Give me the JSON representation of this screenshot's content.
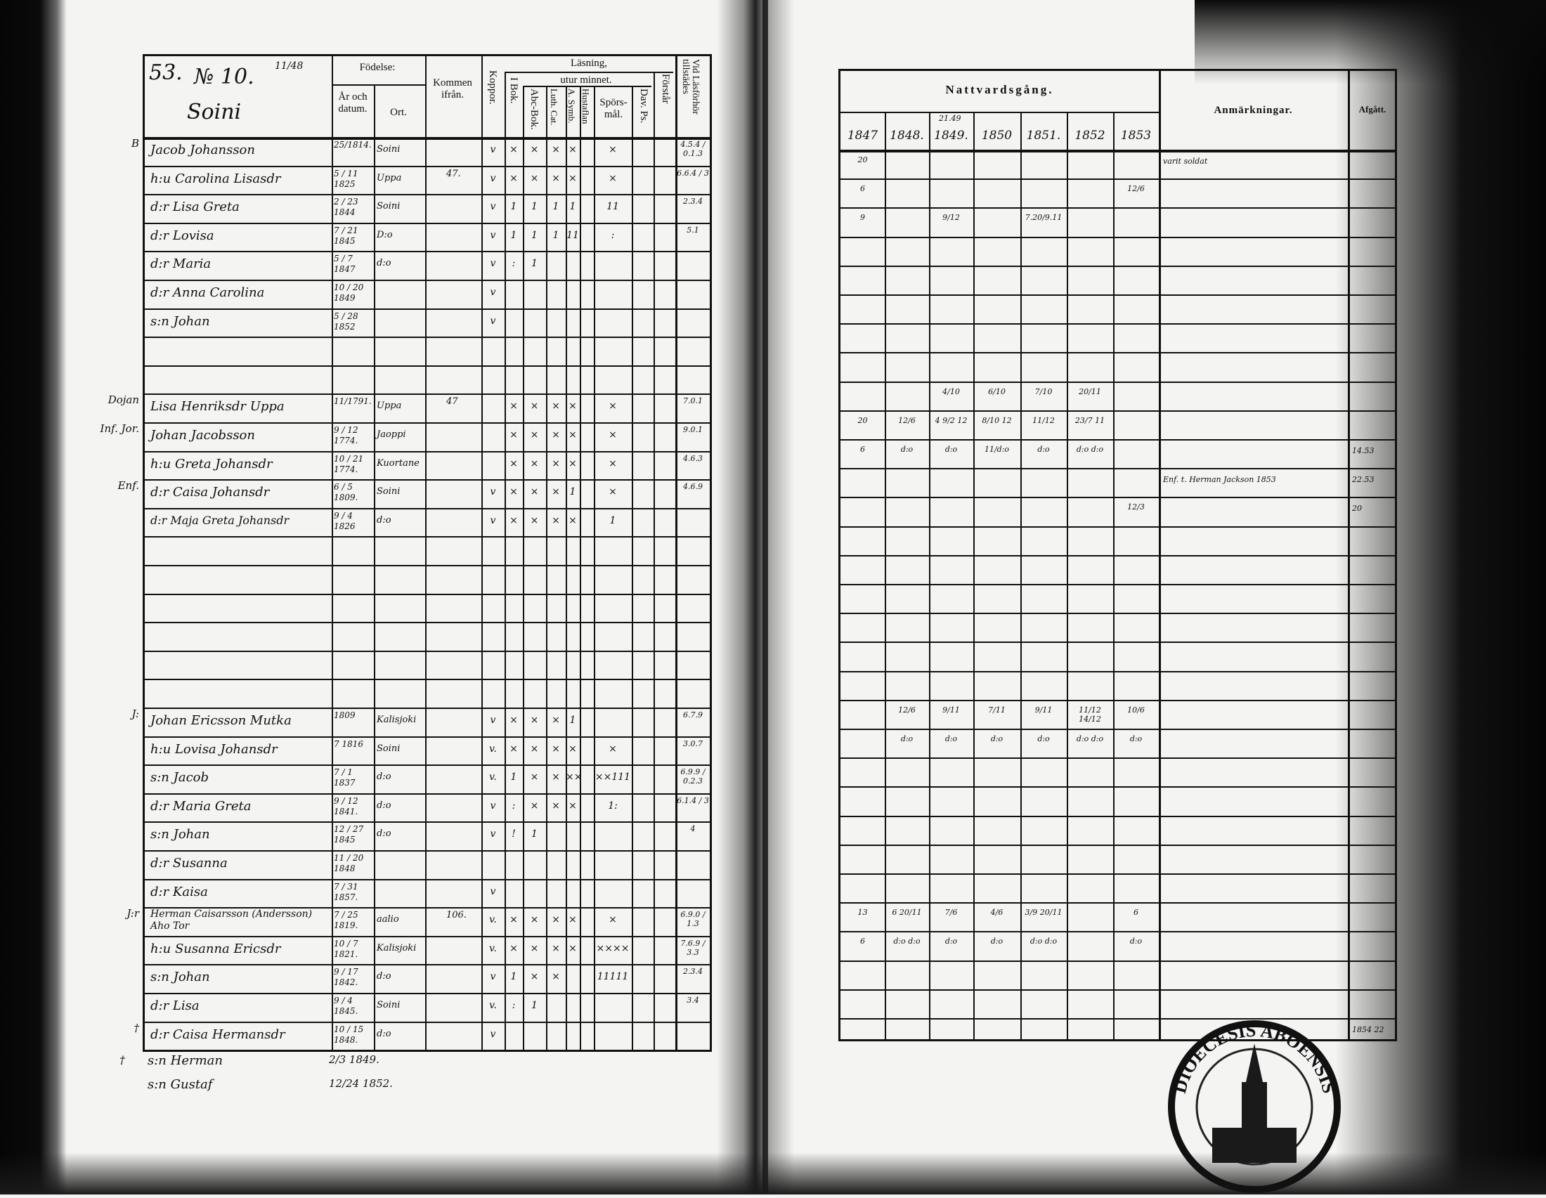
{
  "left_page": {
    "page_number": "53.",
    "household_number": "№ 10.",
    "fraction_note": "11/48",
    "village": "Soini",
    "headers": {
      "fodelse": "Födelse:",
      "ar_och_datum": "År och datum.",
      "ort": "Ort.",
      "kommen_ifran": "Kommen ifrån.",
      "koppor": "Koppor.",
      "lasning": "Läsning,",
      "utur_minnet": "utur minnet.",
      "i_bok": "I Bok.",
      "abc_bok": "Abc-Bok.",
      "luth_cat": "Luth. Cat.",
      "a_symb": "A. Symb.",
      "hustaflan": "Hustaflan",
      "sporsmal": "Spörs-mål.",
      "dav_ps": "Dav. Ps.",
      "forstar": "Förstår",
      "vid_lasforhor": "Vid Läsförhör tillstädes"
    },
    "rows": [
      {
        "row": 0,
        "margin": "B",
        "name": "Jacob Johansson",
        "date": "25/1814.",
        "place": "Soini",
        "from": "",
        "marks": [
          "v",
          "×",
          "×",
          "×",
          "×",
          "",
          "×",
          "",
          "",
          "4.5.4 / 0.1.3"
        ]
      },
      {
        "row": 1,
        "margin": "",
        "name": "h:u Carolina Lisasdr",
        "date": "5 / 11 1825",
        "place": "Uppa",
        "from": "47.",
        "marks": [
          "v",
          "×",
          "×",
          "×",
          "×",
          "",
          "×",
          "",
          "",
          "6.6.4 / 3"
        ]
      },
      {
        "row": 2,
        "margin": "",
        "name": "d:r Lisa Greta",
        "date": "2 / 23 1844",
        "place": "Soini",
        "from": "",
        "marks": [
          "v",
          "1",
          "1",
          "1",
          "1",
          "",
          "11",
          "",
          "",
          "2.3.4"
        ]
      },
      {
        "row": 3,
        "margin": "",
        "name": "d:r Lovisa",
        "date": "7 / 21 1845",
        "place": "D:o",
        "from": "",
        "marks": [
          "v",
          "1",
          "1",
          "1",
          "11",
          "",
          ":",
          "",
          "",
          "5.1"
        ]
      },
      {
        "row": 4,
        "margin": "",
        "name": "d:r Maria",
        "date": "5 / 7 1847",
        "place": "d:o",
        "from": "",
        "marks": [
          "v",
          ":",
          "1",
          "",
          "",
          "",
          "",
          "",
          "",
          ""
        ]
      },
      {
        "row": 5,
        "margin": "",
        "name": "d:r Anna Carolina",
        "date": "10 / 20 1849",
        "place": "",
        "from": "",
        "marks": [
          "v",
          "",
          "",
          "",
          "",
          "",
          "",
          "",
          "",
          ""
        ]
      },
      {
        "row": 6,
        "margin": "",
        "name": "s:n Johan",
        "date": "5 / 28 1852",
        "place": "",
        "from": "",
        "marks": [
          "v",
          "",
          "",
          "",
          "",
          "",
          "",
          "",
          "",
          ""
        ]
      },
      {
        "row": 9,
        "margin": "Dojan",
        "name": "Lisa Henriksdr Uppa",
        "date": "11/1791.",
        "place": "Uppa",
        "from": "47",
        "marks": [
          "",
          "×",
          "×",
          "×",
          "×",
          "",
          "×",
          "",
          "",
          "7.0.1"
        ]
      },
      {
        "row": 10,
        "margin": "Inf. Jor.",
        "name": "Johan Jacobsson",
        "date": "9 / 12 1774.",
        "place": "Jaoppi",
        "from": "",
        "marks": [
          "",
          "×",
          "×",
          "×",
          "×",
          "",
          "×",
          "",
          "",
          "9.0.1"
        ]
      },
      {
        "row": 11,
        "margin": "",
        "name": "h:u Greta Johansdr",
        "date": "10 / 21 1774.",
        "place": "Kuortane",
        "from": "",
        "marks": [
          "",
          "×",
          "×",
          "×",
          "×",
          "",
          "×",
          "",
          "",
          "4.6.3"
        ]
      },
      {
        "row": 12,
        "margin": "Enf.",
        "name": "d:r Caisa Johansdr",
        "date": "6 / 5 1809.",
        "place": "Soini",
        "from": "",
        "marks": [
          "v",
          "×",
          "×",
          "×",
          "1",
          "",
          "×",
          "",
          "",
          "4.6.9"
        ]
      },
      {
        "row": 13,
        "margin": "",
        "name": "d:r Maja Greta Johansdr",
        "date": "9 / 4 1826",
        "place": "d:o",
        "from": "",
        "marks": [
          "v",
          "×",
          "×",
          "×",
          "×",
          "",
          "1",
          "",
          "",
          ""
        ]
      },
      {
        "row": 20,
        "margin": "J:",
        "name": "Johan Ericsson Mutka",
        "date": "1809",
        "place": "Kalisjoki",
        "from": "",
        "marks": [
          "v",
          "×",
          "×",
          "×",
          "1",
          "",
          "",
          "",
          "",
          "6.7.9"
        ]
      },
      {
        "row": 21,
        "margin": "",
        "name": "h:u Lovisa Johansdr",
        "date": "7 1816",
        "place": "Soini",
        "from": "",
        "marks": [
          "v.",
          "×",
          "×",
          "×",
          "×",
          "",
          "×",
          "",
          "",
          "3.0.7"
        ]
      },
      {
        "row": 22,
        "margin": "",
        "name": "s:n Jacob",
        "date": "7 / 1 1837",
        "place": "d:o",
        "from": "",
        "marks": [
          "v.",
          "1",
          "×",
          "×",
          "××",
          "",
          "××111",
          "",
          "",
          "6.9.9 / 0.2.3"
        ]
      },
      {
        "row": 23,
        "margin": "",
        "name": "d:r Maria Greta",
        "date": "9 / 12 1841.",
        "place": "d:o",
        "from": "",
        "marks": [
          "v",
          ":",
          "×",
          "×",
          "×",
          "",
          "1:",
          "",
          "",
          "6.1.4 / 3"
        ]
      },
      {
        "row": 24,
        "margin": "",
        "name": "s:n Johan",
        "date": "12 / 27 1845",
        "place": "d:o",
        "from": "",
        "marks": [
          "v",
          "!",
          "1",
          "",
          "",
          "",
          "",
          "",
          "",
          "4"
        ]
      },
      {
        "row": 25,
        "margin": "",
        "name": "d:r Susanna",
        "date": "11 / 20 1848",
        "place": "",
        "from": "",
        "marks": [
          "",
          "",
          "",
          "",
          "",
          "",
          "",
          "",
          "",
          ""
        ]
      },
      {
        "row": 26,
        "margin": "",
        "name": "d:r Kaisa",
        "date": "7 / 31 1857.",
        "place": "",
        "from": "",
        "marks": [
          "v",
          "",
          "",
          "",
          "",
          "",
          "",
          "",
          "",
          ""
        ]
      },
      {
        "row": 27,
        "margin": "J:r",
        "name": "Herman Caisarsson (Andersson) Aho Tor",
        "date": "7 / 25 1819.",
        "place": "aalio",
        "from": "106.",
        "marks": [
          "v.",
          "×",
          "×",
          "×",
          "×",
          "",
          "×",
          "",
          "",
          "6.9.0 / 1.3"
        ]
      },
      {
        "row": 28,
        "margin": "",
        "name": "h:u Susanna Ericsdr",
        "date": "10 / 7 1821.",
        "place": "Kalisjoki",
        "from": "",
        "marks": [
          "v.",
          "×",
          "×",
          "×",
          "×",
          "",
          "××××",
          "",
          "",
          "7.6.9 / 3.3"
        ]
      },
      {
        "row": 29,
        "margin": "",
        "name": "s:n Johan",
        "date": "9 / 17 1842.",
        "place": "d:o",
        "from": "",
        "marks": [
          "v",
          "1",
          "×",
          "×",
          "",
          "",
          "11111",
          "",
          "",
          "2.3.4"
        ]
      },
      {
        "row": 30,
        "margin": "",
        "name": "d:r Lisa",
        "date": "9 / 4 1845.",
        "place": "Soini",
        "from": "",
        "marks": [
          "v.",
          ":",
          "1",
          "",
          "",
          "",
          "",
          "",
          "",
          "3.4"
        ]
      },
      {
        "row": 31,
        "margin": "†",
        "name": "d:r Caisa Hermansdr",
        "date": "10 / 15 1848.",
        "place": "d:o",
        "from": "",
        "marks": [
          "v",
          "",
          "",
          "",
          "",
          "",
          "",
          "",
          "",
          ""
        ]
      }
    ],
    "below_table": [
      {
        "margin": "†",
        "name": "s:n Herman",
        "date": "2/3 1849."
      },
      {
        "margin": "",
        "name": "s:n Gustaf",
        "date": "12/24 1852."
      }
    ]
  },
  "right_page": {
    "headers": {
      "nattvardsgang": "Nattvardsgång.",
      "years": [
        "1847",
        "1848.",
        "1849.",
        "1850",
        "1851.",
        "1852",
        "1853"
      ],
      "year_note": "21.49",
      "anmarkningar": "Anmärkningar.",
      "afgatt": "Afgått."
    },
    "rows": [
      {
        "row": 0,
        "cells": [
          "20",
          "",
          "",
          "",
          "",
          "",
          ""
        ],
        "note": "varit soldat",
        "afgatt": ""
      },
      {
        "row": 1,
        "cells": [
          "6",
          "",
          "",
          "",
          "",
          "",
          "12/6"
        ],
        "note": "",
        "afgatt": ""
      },
      {
        "row": 2,
        "cells": [
          "9",
          "",
          "9/12",
          "",
          "7.20/9.11",
          "",
          ""
        ],
        "note": "",
        "afgatt": ""
      },
      {
        "row": 8,
        "cells": [
          "",
          "",
          "4/10",
          "6/10",
          "7/10",
          "20/11",
          ""
        ],
        "note": "",
        "afgatt": ""
      },
      {
        "row": 9,
        "cells": [
          "20",
          "12/6",
          "4 9/2 12",
          "8/10 12",
          "11/12",
          "23/7 11",
          ""
        ],
        "note": "",
        "afgatt": ""
      },
      {
        "row": 10,
        "cells": [
          "6",
          "d:o",
          "d:o",
          "11/d:o",
          "d:o",
          "d:o d:o",
          ""
        ],
        "note": "",
        "afgatt": "14.53"
      },
      {
        "row": 11,
        "cells": [
          "",
          "",
          "",
          "",
          "",
          "",
          ""
        ],
        "note": "Enf. t. Herman Jackson 1853",
        "afgatt": "22.53"
      },
      {
        "row": 12,
        "cells": [
          "",
          "",
          "",
          "",
          "",
          "",
          "12/3"
        ],
        "note": "",
        "afgatt": "20"
      },
      {
        "row": 19,
        "cells": [
          "",
          "12/6",
          "9/11",
          "7/11",
          "9/11",
          "11/12 14/12",
          "10/6"
        ],
        "note": "",
        "afgatt": ""
      },
      {
        "row": 20,
        "cells": [
          "",
          "d:o",
          "d:o",
          "d:o",
          "d:o",
          "d:o d:o",
          "d:o"
        ],
        "note": "",
        "afgatt": ""
      },
      {
        "row": 26,
        "cells": [
          "13",
          "6 20/11",
          "7/6",
          "4/6",
          "3/9 20/11",
          "",
          "6"
        ],
        "note": "",
        "afgatt": ""
      },
      {
        "row": 27,
        "cells": [
          "6",
          "d:o d:o",
          "d:o",
          "d:o",
          "d:o d:o",
          "",
          "d:o"
        ],
        "note": "",
        "afgatt": ""
      },
      {
        "row": 30,
        "cells": [
          "",
          "",
          "",
          "",
          "",
          "",
          ""
        ],
        "note": "",
        "afgatt": "1854 22"
      }
    ]
  },
  "stamp": {
    "text": "DIOECESIS ABOENSIS"
  },
  "colors": {
    "ink": "#111111",
    "paper": "#f4f4f2",
    "scan_shadow": "#0a0a0a"
  }
}
